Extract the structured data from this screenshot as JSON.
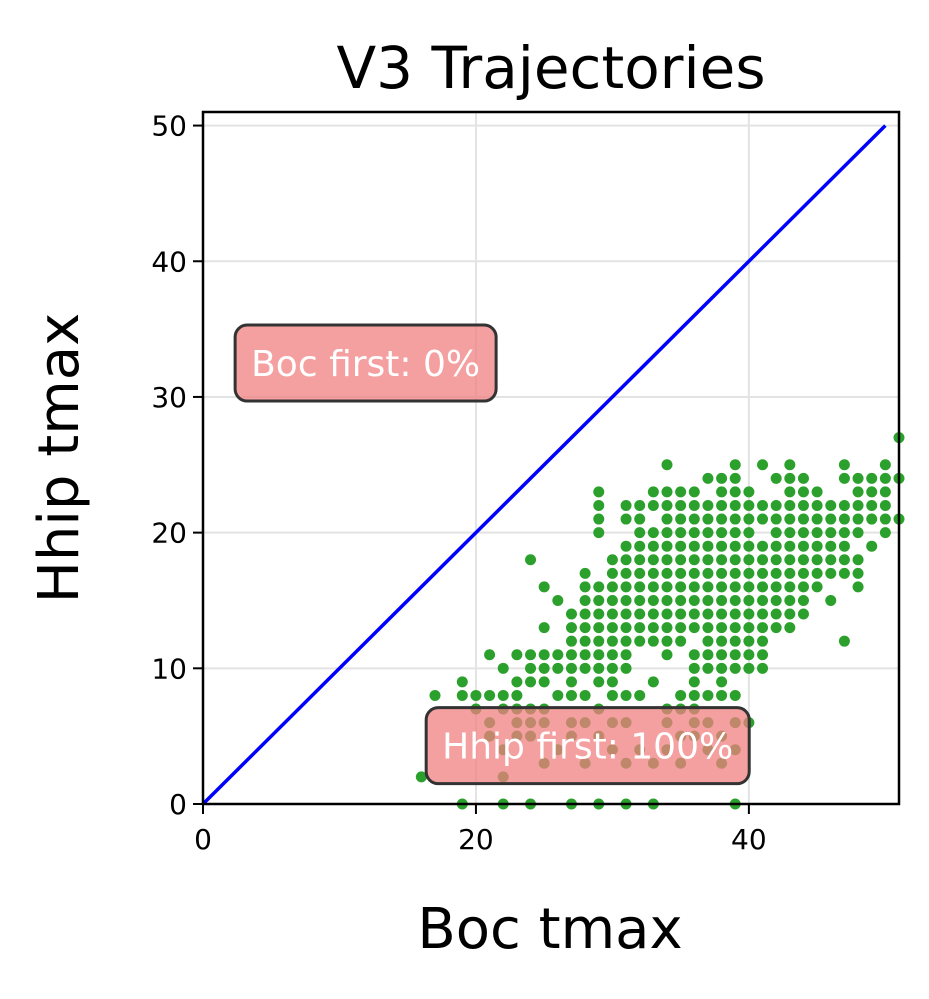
{
  "chart_data": {
    "type": "scatter",
    "title": "V3 Trajectories",
    "xlabel": "Boc tmax",
    "ylabel": "Hhip tmax",
    "xlim": [
      0,
      51
    ],
    "ylim": [
      0,
      51
    ],
    "xticks": [
      0,
      20,
      40
    ],
    "yticks": [
      0,
      10,
      20,
      30,
      40,
      50
    ],
    "grid": true,
    "colors": {
      "points": "#2ca02c",
      "diagonal": "#0000ff",
      "annotation_box": "#f08080",
      "annotation_border": "#333333"
    },
    "diagonal": {
      "x": [
        0,
        50
      ],
      "y": [
        0,
        50
      ]
    },
    "annotations": [
      {
        "text": "Boc first: 0%",
        "x": 2.5,
        "y": 32.5
      },
      {
        "text": "Hhip first: 100%",
        "x": 16.5,
        "y": 4.3
      }
    ],
    "points": [
      [
        16,
        2
      ],
      [
        17,
        8
      ],
      [
        19,
        9
      ],
      [
        19,
        0
      ],
      [
        19,
        8
      ],
      [
        20,
        7
      ],
      [
        20,
        8
      ],
      [
        21,
        11
      ],
      [
        21,
        8
      ],
      [
        21,
        6
      ],
      [
        21,
        5
      ],
      [
        22,
        7
      ],
      [
        22,
        8
      ],
      [
        22,
        10
      ],
      [
        22,
        4
      ],
      [
        22,
        0
      ],
      [
        22,
        2
      ],
      [
        23,
        11
      ],
      [
        23,
        9
      ],
      [
        23,
        8
      ],
      [
        23,
        7
      ],
      [
        23,
        6
      ],
      [
        23,
        5
      ],
      [
        24,
        18
      ],
      [
        24,
        11
      ],
      [
        24,
        10
      ],
      [
        24,
        9
      ],
      [
        24,
        7
      ],
      [
        24,
        6
      ],
      [
        24,
        5
      ],
      [
        24,
        0
      ],
      [
        25,
        16
      ],
      [
        25,
        13
      ],
      [
        25,
        11
      ],
      [
        25,
        10
      ],
      [
        25,
        9
      ],
      [
        25,
        7
      ],
      [
        25,
        6
      ],
      [
        25,
        3
      ],
      [
        26,
        15
      ],
      [
        26,
        11
      ],
      [
        26,
        10
      ],
      [
        26,
        8
      ],
      [
        26,
        4
      ],
      [
        27,
        14
      ],
      [
        27,
        13
      ],
      [
        27,
        12
      ],
      [
        27,
        11
      ],
      [
        27,
        10
      ],
      [
        27,
        9
      ],
      [
        27,
        8
      ],
      [
        27,
        6
      ],
      [
        27,
        5
      ],
      [
        27,
        0
      ],
      [
        28,
        17
      ],
      [
        28,
        16
      ],
      [
        28,
        15
      ],
      [
        28,
        14
      ],
      [
        28,
        13
      ],
      [
        28,
        12
      ],
      [
        28,
        11
      ],
      [
        28,
        10
      ],
      [
        28,
        8
      ],
      [
        28,
        6
      ],
      [
        28,
        3
      ],
      [
        29,
        23
      ],
      [
        29,
        22
      ],
      [
        29,
        21
      ],
      [
        29,
        20
      ],
      [
        29,
        16
      ],
      [
        29,
        15
      ],
      [
        29,
        14
      ],
      [
        29,
        13
      ],
      [
        29,
        12
      ],
      [
        29,
        11
      ],
      [
        29,
        10
      ],
      [
        29,
        9
      ],
      [
        29,
        7
      ],
      [
        29,
        5
      ],
      [
        29,
        0
      ],
      [
        30,
        18
      ],
      [
        30,
        17
      ],
      [
        30,
        16
      ],
      [
        30,
        15
      ],
      [
        30,
        14
      ],
      [
        30,
        13
      ],
      [
        30,
        12
      ],
      [
        30,
        11
      ],
      [
        30,
        10
      ],
      [
        30,
        9
      ],
      [
        30,
        8
      ],
      [
        30,
        6
      ],
      [
        30,
        4
      ],
      [
        31,
        22
      ],
      [
        31,
        21
      ],
      [
        31,
        19
      ],
      [
        31,
        18
      ],
      [
        31,
        17
      ],
      [
        31,
        16
      ],
      [
        31,
        15
      ],
      [
        31,
        14
      ],
      [
        31,
        13
      ],
      [
        31,
        12
      ],
      [
        31,
        11
      ],
      [
        31,
        10
      ],
      [
        31,
        8
      ],
      [
        31,
        6
      ],
      [
        31,
        3
      ],
      [
        31,
        0
      ],
      [
        32,
        22
      ],
      [
        32,
        21
      ],
      [
        32,
        20
      ],
      [
        32,
        19
      ],
      [
        32,
        18
      ],
      [
        32,
        17
      ],
      [
        32,
        16
      ],
      [
        32,
        15
      ],
      [
        32,
        14
      ],
      [
        32,
        13
      ],
      [
        32,
        12
      ],
      [
        32,
        8
      ],
      [
        32,
        4
      ],
      [
        33,
        23
      ],
      [
        33,
        22
      ],
      [
        33,
        20
      ],
      [
        33,
        19
      ],
      [
        33,
        18
      ],
      [
        33,
        17
      ],
      [
        33,
        16
      ],
      [
        33,
        15
      ],
      [
        33,
        14
      ],
      [
        33,
        13
      ],
      [
        33,
        12
      ],
      [
        33,
        9
      ],
      [
        33,
        3
      ],
      [
        33,
        0
      ],
      [
        34,
        25
      ],
      [
        34,
        23
      ],
      [
        34,
        22
      ],
      [
        34,
        21
      ],
      [
        34,
        20
      ],
      [
        34,
        19
      ],
      [
        34,
        18
      ],
      [
        34,
        17
      ],
      [
        34,
        16
      ],
      [
        34,
        15
      ],
      [
        34,
        14
      ],
      [
        34,
        13
      ],
      [
        34,
        12
      ],
      [
        34,
        11
      ],
      [
        34,
        7
      ],
      [
        34,
        6
      ],
      [
        34,
        4
      ],
      [
        35,
        23
      ],
      [
        35,
        22
      ],
      [
        35,
        21
      ],
      [
        35,
        20
      ],
      [
        35,
        19
      ],
      [
        35,
        18
      ],
      [
        35,
        17
      ],
      [
        35,
        16
      ],
      [
        35,
        15
      ],
      [
        35,
        14
      ],
      [
        35,
        13
      ],
      [
        35,
        12
      ],
      [
        35,
        8
      ],
      [
        35,
        7
      ],
      [
        35,
        5
      ],
      [
        35,
        3
      ],
      [
        36,
        23
      ],
      [
        36,
        22
      ],
      [
        36,
        21
      ],
      [
        36,
        20
      ],
      [
        36,
        19
      ],
      [
        36,
        18
      ],
      [
        36,
        17
      ],
      [
        36,
        16
      ],
      [
        36,
        15
      ],
      [
        36,
        14
      ],
      [
        36,
        13
      ],
      [
        36,
        11
      ],
      [
        36,
        10
      ],
      [
        36,
        9
      ],
      [
        36,
        8
      ],
      [
        36,
        7
      ],
      [
        36,
        6
      ],
      [
        36,
        5
      ],
      [
        37,
        24
      ],
      [
        37,
        22
      ],
      [
        37,
        21
      ],
      [
        37,
        20
      ],
      [
        37,
        19
      ],
      [
        37,
        18
      ],
      [
        37,
        17
      ],
      [
        37,
        16
      ],
      [
        37,
        15
      ],
      [
        37,
        14
      ],
      [
        37,
        13
      ],
      [
        37,
        12
      ],
      [
        37,
        11
      ],
      [
        37,
        10
      ],
      [
        37,
        8
      ],
      [
        37,
        6
      ],
      [
        37,
        4
      ],
      [
        38,
        24
      ],
      [
        38,
        23
      ],
      [
        38,
        22
      ],
      [
        38,
        21
      ],
      [
        38,
        20
      ],
      [
        38,
        19
      ],
      [
        38,
        18
      ],
      [
        38,
        17
      ],
      [
        38,
        16
      ],
      [
        38,
        15
      ],
      [
        38,
        14
      ],
      [
        38,
        13
      ],
      [
        38,
        12
      ],
      [
        38,
        11
      ],
      [
        38,
        10
      ],
      [
        38,
        9
      ],
      [
        38,
        8
      ],
      [
        38,
        5
      ],
      [
        38,
        3
      ],
      [
        39,
        25
      ],
      [
        39,
        24
      ],
      [
        39,
        23
      ],
      [
        39,
        22
      ],
      [
        39,
        21
      ],
      [
        39,
        20
      ],
      [
        39,
        19
      ],
      [
        39,
        18
      ],
      [
        39,
        17
      ],
      [
        39,
        16
      ],
      [
        39,
        15
      ],
      [
        39,
        14
      ],
      [
        39,
        13
      ],
      [
        39,
        12
      ],
      [
        39,
        11
      ],
      [
        39,
        10
      ],
      [
        39,
        8
      ],
      [
        39,
        6
      ],
      [
        39,
        4
      ],
      [
        39,
        0
      ],
      [
        40,
        23
      ],
      [
        40,
        22
      ],
      [
        40,
        21
      ],
      [
        40,
        20
      ],
      [
        40,
        19
      ],
      [
        40,
        18
      ],
      [
        40,
        17
      ],
      [
        40,
        16
      ],
      [
        40,
        15
      ],
      [
        40,
        14
      ],
      [
        40,
        13
      ],
      [
        40,
        12
      ],
      [
        40,
        11
      ],
      [
        40,
        10
      ],
      [
        40,
        6
      ],
      [
        41,
        25
      ],
      [
        41,
        22
      ],
      [
        41,
        21
      ],
      [
        41,
        19
      ],
      [
        41,
        18
      ],
      [
        41,
        17
      ],
      [
        41,
        16
      ],
      [
        41,
        15
      ],
      [
        41,
        14
      ],
      [
        41,
        13
      ],
      [
        41,
        12
      ],
      [
        41,
        11
      ],
      [
        41,
        10
      ],
      [
        42,
        24
      ],
      [
        42,
        22
      ],
      [
        42,
        21
      ],
      [
        42,
        20
      ],
      [
        42,
        19
      ],
      [
        42,
        18
      ],
      [
        42,
        17
      ],
      [
        42,
        16
      ],
      [
        42,
        15
      ],
      [
        42,
        14
      ],
      [
        42,
        13
      ],
      [
        43,
        25
      ],
      [
        43,
        24
      ],
      [
        43,
        23
      ],
      [
        43,
        22
      ],
      [
        43,
        21
      ],
      [
        43,
        20
      ],
      [
        43,
        19
      ],
      [
        43,
        18
      ],
      [
        43,
        17
      ],
      [
        43,
        16
      ],
      [
        43,
        15
      ],
      [
        43,
        14
      ],
      [
        43,
        13
      ],
      [
        44,
        24
      ],
      [
        44,
        23
      ],
      [
        44,
        22
      ],
      [
        44,
        21
      ],
      [
        44,
        20
      ],
      [
        44,
        19
      ],
      [
        44,
        18
      ],
      [
        44,
        17
      ],
      [
        44,
        16
      ],
      [
        44,
        15
      ],
      [
        44,
        14
      ],
      [
        45,
        23
      ],
      [
        45,
        22
      ],
      [
        45,
        21
      ],
      [
        45,
        20
      ],
      [
        45,
        19
      ],
      [
        45,
        18
      ],
      [
        45,
        17
      ],
      [
        45,
        16
      ],
      [
        46,
        22
      ],
      [
        46,
        21
      ],
      [
        46,
        20
      ],
      [
        46,
        19
      ],
      [
        46,
        18
      ],
      [
        46,
        17
      ],
      [
        46,
        15
      ],
      [
        47,
        25
      ],
      [
        47,
        24
      ],
      [
        47,
        22
      ],
      [
        47,
        21
      ],
      [
        47,
        20
      ],
      [
        47,
        19
      ],
      [
        47,
        18
      ],
      [
        47,
        17
      ],
      [
        47,
        12
      ],
      [
        48,
        24
      ],
      [
        48,
        23
      ],
      [
        48,
        22
      ],
      [
        48,
        21
      ],
      [
        48,
        20
      ],
      [
        48,
        18
      ],
      [
        48,
        17
      ],
      [
        48,
        16
      ],
      [
        49,
        24
      ],
      [
        49,
        23
      ],
      [
        49,
        22
      ],
      [
        49,
        21
      ],
      [
        49,
        19
      ],
      [
        50,
        25
      ],
      [
        50,
        24
      ],
      [
        50,
        23
      ],
      [
        50,
        22
      ],
      [
        50,
        21
      ],
      [
        50,
        20
      ],
      [
        51,
        27
      ],
      [
        51,
        24
      ],
      [
        51,
        21
      ]
    ]
  }
}
